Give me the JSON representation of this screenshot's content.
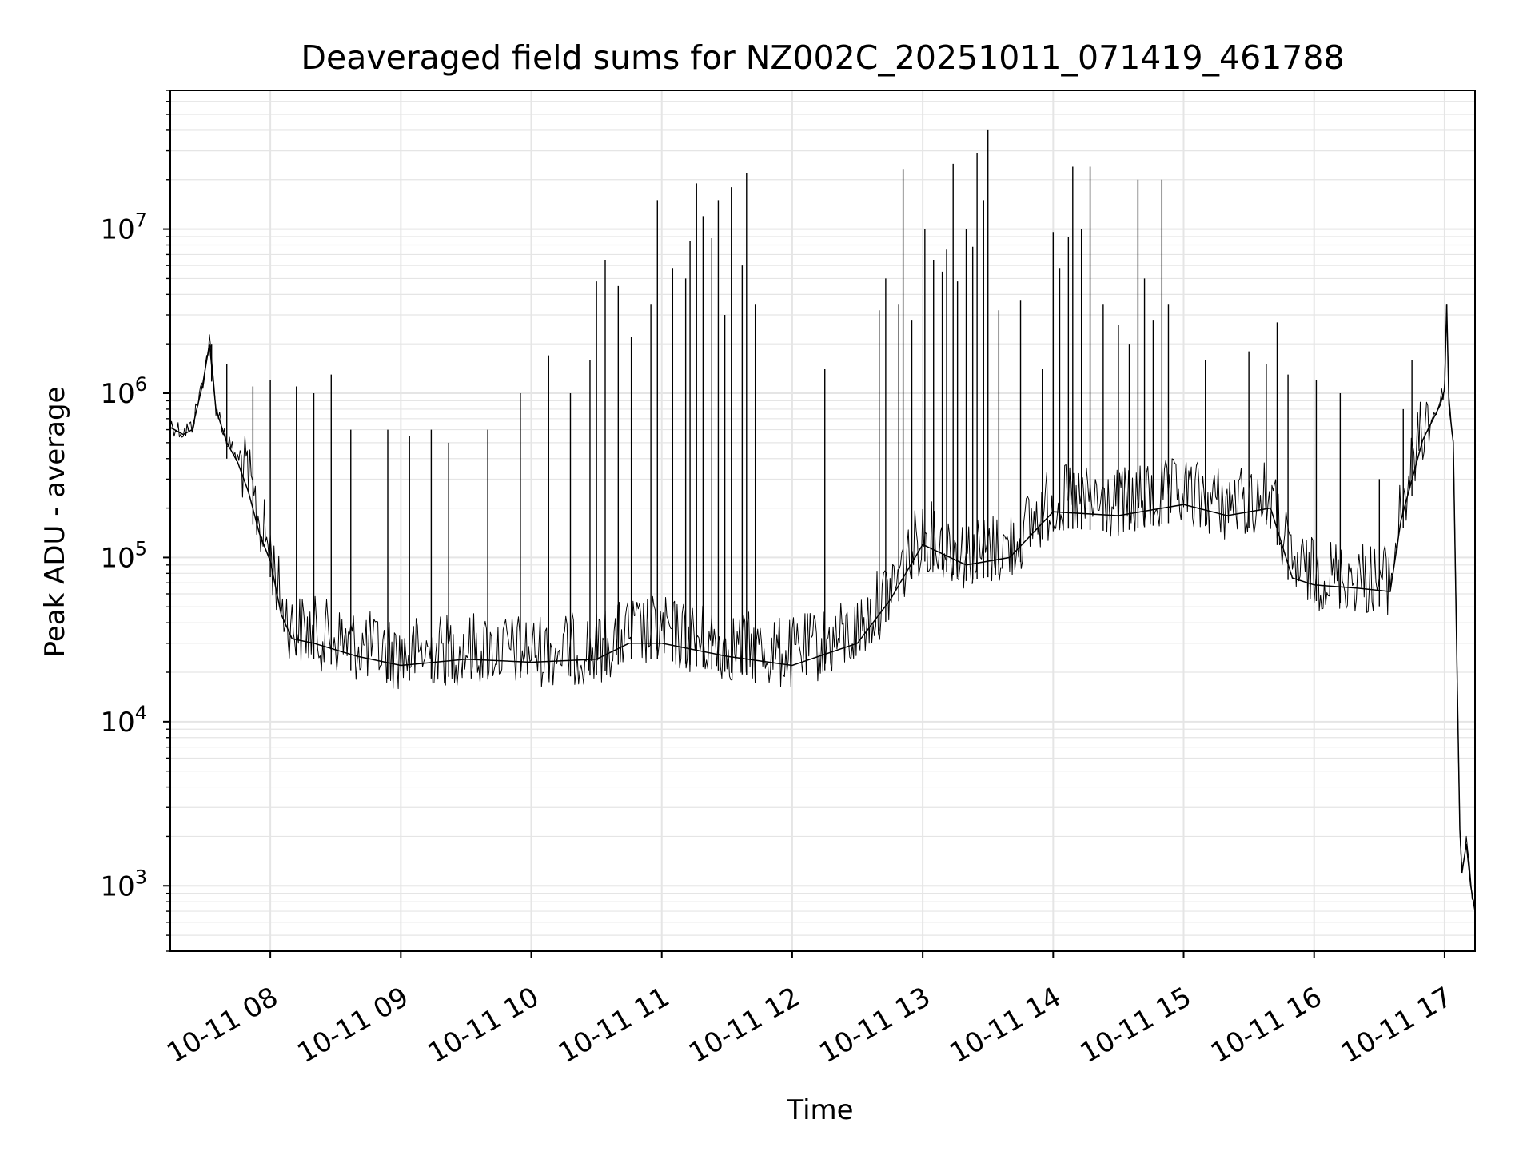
{
  "chart_data": {
    "type": "line",
    "title": "Deaveraged field sums for NZ002C_20251011_071419_461788",
    "xlabel": "Time",
    "ylabel": "Peak ADU - average",
    "yscale": "log",
    "xlim": [
      "2025-10-11 07:14",
      "2025-10-11 17:14"
    ],
    "ylim": [
      400,
      70000000
    ],
    "grid": "major and minor",
    "line_color": "#000000",
    "grid_color": "#e5e5e5",
    "x_ticks": [
      {
        "value": "2025-10-11 08:00",
        "label": "10-11 08"
      },
      {
        "value": "2025-10-11 09:00",
        "label": "10-11 09"
      },
      {
        "value": "2025-10-11 10:00",
        "label": "10-11 10"
      },
      {
        "value": "2025-10-11 11:00",
        "label": "10-11 11"
      },
      {
        "value": "2025-10-11 12:00",
        "label": "10-11 12"
      },
      {
        "value": "2025-10-11 13:00",
        "label": "10-11 13"
      },
      {
        "value": "2025-10-11 14:00",
        "label": "10-11 14"
      },
      {
        "value": "2025-10-11 15:00",
        "label": "10-11 15"
      },
      {
        "value": "2025-10-11 16:00",
        "label": "10-11 16"
      },
      {
        "value": "2025-10-11 17:00",
        "label": "10-11 17"
      }
    ],
    "y_ticks": [
      {
        "value": 1000,
        "base": "10",
        "exp": "3"
      },
      {
        "value": 10000,
        "base": "10",
        "exp": "4"
      },
      {
        "value": 100000,
        "base": "10",
        "exp": "5"
      },
      {
        "value": 1000000,
        "base": "10",
        "exp": "6"
      },
      {
        "value": 10000000,
        "base": "10",
        "exp": "7"
      }
    ],
    "series": [
      {
        "line_width": 1,
        "points": [
          [
            "2025-10-11 07:14",
            620000
          ],
          [
            "2025-10-11 07:20",
            560000
          ],
          [
            "2025-10-11 07:24",
            600000
          ],
          [
            "2025-10-11 07:29",
            1150000
          ],
          [
            "2025-10-11 07:32",
            2000000
          ],
          [
            "2025-10-11 07:35",
            800000
          ],
          [
            "2025-10-11 07:40",
            500000
          ],
          [
            "2025-10-11 07:45",
            380000
          ],
          [
            "2025-10-11 07:50",
            250000
          ],
          [
            "2025-10-11 07:55",
            140000
          ],
          [
            "2025-10-11 08:00",
            95000
          ],
          [
            "2025-10-11 08:05",
            45000
          ],
          [
            "2025-10-11 08:10",
            32000
          ],
          [
            "2025-10-11 08:20",
            30000
          ],
          [
            "2025-10-11 08:40",
            25000
          ],
          [
            "2025-10-11 09:00",
            22000
          ],
          [
            "2025-10-11 09:30",
            24000
          ],
          [
            "2025-10-11 10:00",
            23000
          ],
          [
            "2025-10-11 10:30",
            24000
          ],
          [
            "2025-10-11 10:45",
            30000
          ],
          [
            "2025-10-11 11:00",
            30000
          ],
          [
            "2025-10-11 11:30",
            25000
          ],
          [
            "2025-10-11 12:00",
            22000
          ],
          [
            "2025-10-11 12:30",
            30000
          ],
          [
            "2025-10-11 12:45",
            55000
          ],
          [
            "2025-10-11 13:00",
            120000
          ],
          [
            "2025-10-11 13:20",
            90000
          ],
          [
            "2025-10-11 13:40",
            100000
          ],
          [
            "2025-10-11 14:00",
            190000
          ],
          [
            "2025-10-11 14:30",
            180000
          ],
          [
            "2025-10-11 15:00",
            210000
          ],
          [
            "2025-10-11 15:20",
            180000
          ],
          [
            "2025-10-11 15:40",
            200000
          ],
          [
            "2025-10-11 15:50",
            75000
          ],
          [
            "2025-10-11 16:00",
            68000
          ],
          [
            "2025-10-11 16:20",
            65000
          ],
          [
            "2025-10-11 16:35",
            62000
          ],
          [
            "2025-10-11 16:40",
            170000
          ],
          [
            "2025-10-11 16:50",
            520000
          ],
          [
            "2025-10-11 16:58",
            850000
          ],
          [
            "2025-10-11 17:00",
            1050000
          ],
          [
            "2025-10-11 17:01",
            3500000
          ],
          [
            "2025-10-11 17:02",
            850000
          ],
          [
            "2025-10-11 17:04",
            500000
          ],
          [
            "2025-10-11 17:06",
            13000
          ],
          [
            "2025-10-11 17:07",
            2200
          ],
          [
            "2025-10-11 17:08",
            1200
          ],
          [
            "2025-10-11 17:10",
            1800
          ],
          [
            "2025-10-11 17:12",
            1000
          ],
          [
            "2025-10-11 17:14",
            700
          ]
        ],
        "spikes": [
          [
            "2025-10-11 07:33",
            2000000
          ],
          [
            "2025-10-11 07:40",
            1500000
          ],
          [
            "2025-10-11 07:52",
            1100000
          ],
          [
            "2025-10-11 08:00",
            1200000
          ],
          [
            "2025-10-11 08:12",
            1100000
          ],
          [
            "2025-10-11 08:20",
            1000000
          ],
          [
            "2025-10-11 08:28",
            1300000
          ],
          [
            "2025-10-11 08:37",
            600000
          ],
          [
            "2025-10-11 08:54",
            600000
          ],
          [
            "2025-10-11 09:04",
            550000
          ],
          [
            "2025-10-11 09:14",
            600000
          ],
          [
            "2025-10-11 09:22",
            500000
          ],
          [
            "2025-10-11 09:40",
            600000
          ],
          [
            "2025-10-11 09:55",
            1000000
          ],
          [
            "2025-10-11 10:08",
            1700000
          ],
          [
            "2025-10-11 10:18",
            1000000
          ],
          [
            "2025-10-11 10:27",
            1600000
          ],
          [
            "2025-10-11 10:30",
            4800000
          ],
          [
            "2025-10-11 10:34",
            6500000
          ],
          [
            "2025-10-11 10:40",
            4500000
          ],
          [
            "2025-10-11 10:46",
            2200000
          ],
          [
            "2025-10-11 10:55",
            3500000
          ],
          [
            "2025-10-11 10:58",
            15000000
          ],
          [
            "2025-10-11 11:05",
            5800000
          ],
          [
            "2025-10-11 11:11",
            5000000
          ],
          [
            "2025-10-11 11:13",
            8500000
          ],
          [
            "2025-10-11 11:16",
            19000000
          ],
          [
            "2025-10-11 11:19",
            12000000
          ],
          [
            "2025-10-11 11:23",
            8800000
          ],
          [
            "2025-10-11 11:26",
            15000000
          ],
          [
            "2025-10-11 11:29",
            3000000
          ],
          [
            "2025-10-11 11:32",
            18000000
          ],
          [
            "2025-10-11 11:37",
            6000000
          ],
          [
            "2025-10-11 11:39",
            22000000
          ],
          [
            "2025-10-11 11:43",
            3500000
          ],
          [
            "2025-10-11 12:15",
            1400000
          ],
          [
            "2025-10-11 12:40",
            3200000
          ],
          [
            "2025-10-11 12:43",
            5000000
          ],
          [
            "2025-10-11 12:49",
            3500000
          ],
          [
            "2025-10-11 12:51",
            23000000
          ],
          [
            "2025-10-11 12:55",
            2800000
          ],
          [
            "2025-10-11 13:01",
            10000000
          ],
          [
            "2025-10-11 13:05",
            6500000
          ],
          [
            "2025-10-11 13:09",
            5500000
          ],
          [
            "2025-10-11 13:11",
            7500000
          ],
          [
            "2025-10-11 13:14",
            25000000
          ],
          [
            "2025-10-11 13:16",
            4800000
          ],
          [
            "2025-10-11 13:20",
            10000000
          ],
          [
            "2025-10-11 13:23",
            7800000
          ],
          [
            "2025-10-11 13:25",
            29000000
          ],
          [
            "2025-10-11 13:28",
            15000000
          ],
          [
            "2025-10-11 13:30",
            40000000
          ],
          [
            "2025-10-11 13:35",
            3200000
          ],
          [
            "2025-10-11 13:45",
            3700000
          ],
          [
            "2025-10-11 13:55",
            1400000
          ],
          [
            "2025-10-11 14:00",
            9600000
          ],
          [
            "2025-10-11 14:03",
            5800000
          ],
          [
            "2025-10-11 14:07",
            9000000
          ],
          [
            "2025-10-11 14:09",
            24000000
          ],
          [
            "2025-10-11 14:13",
            10000000
          ],
          [
            "2025-10-11 14:17",
            24000000
          ],
          [
            "2025-10-11 14:23",
            3500000
          ],
          [
            "2025-10-11 14:30",
            2600000
          ],
          [
            "2025-10-11 14:35",
            2000000
          ],
          [
            "2025-10-11 14:39",
            20000000
          ],
          [
            "2025-10-11 14:42",
            5000000
          ],
          [
            "2025-10-11 14:46",
            2800000
          ],
          [
            "2025-10-11 14:50",
            20000000
          ],
          [
            "2025-10-11 14:53",
            3500000
          ],
          [
            "2025-10-11 15:10",
            1600000
          ],
          [
            "2025-10-11 15:30",
            1800000
          ],
          [
            "2025-10-11 15:38",
            1500000
          ],
          [
            "2025-10-11 15:43",
            2700000
          ],
          [
            "2025-10-11 15:48",
            1300000
          ],
          [
            "2025-10-11 16:01",
            1200000
          ],
          [
            "2025-10-11 16:12",
            1000000
          ],
          [
            "2025-10-11 16:30",
            300000
          ],
          [
            "2025-10-11 16:41",
            800000
          ],
          [
            "2025-10-11 16:45",
            1600000
          ],
          [
            "2025-10-11 17:01",
            3500000
          ]
        ]
      }
    ]
  }
}
